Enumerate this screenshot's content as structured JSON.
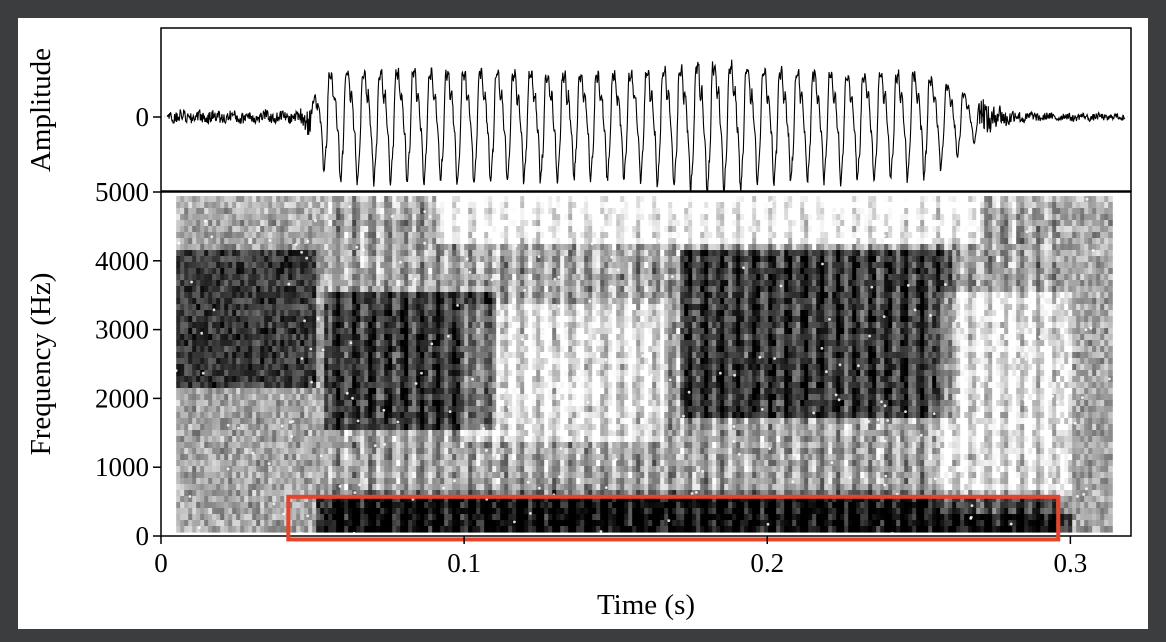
{
  "chart_data": [
    {
      "type": "line",
      "title": "",
      "panel": "waveform",
      "ylabel": "Amplitude",
      "y_ticks": [
        {
          "value": 0,
          "label": "0"
        }
      ],
      "xlim": [
        0,
        0.32
      ],
      "y_range": [
        -1,
        1
      ],
      "grid": false,
      "series": [
        {
          "envelope_time_s": [
            0.0,
            0.02,
            0.045,
            0.05,
            0.055,
            0.06,
            0.1,
            0.15,
            0.17,
            0.18,
            0.19,
            0.2,
            0.25,
            0.26,
            0.27,
            0.28,
            0.29,
            0.3,
            0.315
          ],
          "envelope_amplitude": [
            0.1,
            0.1,
            0.08,
            0.3,
            0.8,
            0.85,
            0.85,
            0.8,
            0.9,
            1.0,
            0.95,
            0.85,
            0.8,
            0.6,
            0.3,
            0.12,
            0.06,
            0.06,
            0.05
          ],
          "period_s": 0.0055
        }
      ]
    },
    {
      "type": "heatmap",
      "title": "",
      "panel": "spectrogram",
      "xlabel": "Time (s)",
      "ylabel": "Frequency (Hz)",
      "xlim": [
        0,
        0.32
      ],
      "ylim": [
        0,
        5000
      ],
      "x_ticks": [
        {
          "value": 0,
          "label": "0"
        },
        {
          "value": 0.1,
          "label": "0.1"
        },
        {
          "value": 0.2,
          "label": "0.2"
        },
        {
          "value": 0.3,
          "label": "0.3"
        }
      ],
      "y_ticks": [
        {
          "value": 0,
          "label": "0"
        },
        {
          "value": 1000,
          "label": "1000"
        },
        {
          "value": 2000,
          "label": "2000"
        },
        {
          "value": 3000,
          "label": "3000"
        },
        {
          "value": 4000,
          "label": "4000"
        },
        {
          "value": 5000,
          "label": "5000"
        }
      ],
      "colormap": "grayscale (dark = high energy)",
      "highlight_box": {
        "t_start": 0.042,
        "t_end": 0.296,
        "f_low": -50,
        "f_high": 570,
        "color": "#e8442c"
      },
      "dark_regions": [
        {
          "t": [
            0.005,
            0.05
          ],
          "f": [
            2200,
            4200
          ]
        },
        {
          "t": [
            0.053,
            0.11
          ],
          "f": [
            1600,
            3600
          ]
        },
        {
          "t": [
            0.17,
            0.26
          ],
          "f": [
            1800,
            4200
          ]
        },
        {
          "t": [
            0.05,
            0.3
          ],
          "f": [
            0,
            600
          ]
        }
      ]
    }
  ]
}
